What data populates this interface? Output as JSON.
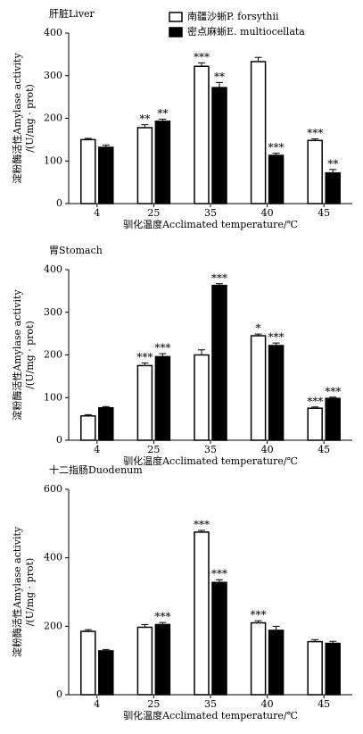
{
  "chart_data": [
    {
      "type": "bar",
      "title": "肝脏Liver",
      "x_label": "驯化温度Acclimated temperature/℃",
      "y_label": [
        "淀粉酶活性Amylase activity",
        "/(U/mg · prot)"
      ],
      "categories": [
        "4",
        "25",
        "35",
        "40",
        "45"
      ],
      "series": [
        {
          "name": "南疆沙蜥P. forsythii",
          "color": "#ffffff",
          "values": [
            150,
            178,
            322,
            333,
            148
          ],
          "errors": [
            3,
            7,
            8,
            10,
            4
          ],
          "significance": [
            null,
            "**",
            "***",
            null,
            "***"
          ]
        },
        {
          "name": "密点麻蜥E. multiocellata",
          "color": "#000000",
          "values": [
            132,
            193,
            272,
            113,
            72
          ],
          "errors": [
            5,
            5,
            12,
            5,
            8
          ],
          "significance": [
            null,
            "**",
            "**",
            "***",
            "**"
          ]
        }
      ],
      "ylim": [
        0,
        400
      ],
      "yticks": [
        0,
        100,
        200,
        300,
        400
      ],
      "legend": "top"
    },
    {
      "type": "bar",
      "title": "胃Stomach",
      "x_label": "驯化温度Acclimated temperature/℃",
      "y_label": [
        "淀粉酶活性Amylase activity",
        "/(U/mg · prot)"
      ],
      "categories": [
        "4",
        "25",
        "35",
        "40",
        "45"
      ],
      "series": [
        {
          "color": "#ffffff",
          "values": [
            57,
            175,
            200,
            245,
            75
          ],
          "errors": [
            3,
            6,
            12,
            4,
            3
          ],
          "significance": [
            null,
            "***",
            null,
            "*",
            "***"
          ]
        },
        {
          "color": "#000000",
          "values": [
            76,
            196,
            363,
            222,
            98
          ],
          "errors": [
            3,
            7,
            4,
            6,
            3
          ],
          "significance": [
            null,
            "***",
            "***",
            "***",
            "***"
          ]
        }
      ],
      "ylim": [
        0,
        400
      ],
      "yticks": [
        0,
        100,
        200,
        300,
        400
      ]
    },
    {
      "type": "bar",
      "title": "十二指肠Duodenum",
      "x_label": "驯化温度Acclimated temperature/℃",
      "y_label": [
        "淀粉酶活性Amylase activity",
        "/(U/mg · prot)"
      ],
      "categories": [
        "4",
        "25",
        "35",
        "40",
        "45"
      ],
      "series": [
        {
          "color": "#ffffff",
          "values": [
            185,
            197,
            475,
            210,
            155
          ],
          "errors": [
            5,
            8,
            5,
            6,
            6
          ],
          "significance": [
            null,
            null,
            "***",
            "***",
            null
          ]
        },
        {
          "color": "#000000",
          "values": [
            128,
            205,
            328,
            188,
            150
          ],
          "errors": [
            4,
            6,
            8,
            12,
            6
          ],
          "significance": [
            null,
            "***",
            "***",
            null,
            null
          ]
        }
      ],
      "ylim": [
        0,
        600
      ],
      "yticks": [
        0,
        200,
        400,
        600
      ]
    }
  ]
}
